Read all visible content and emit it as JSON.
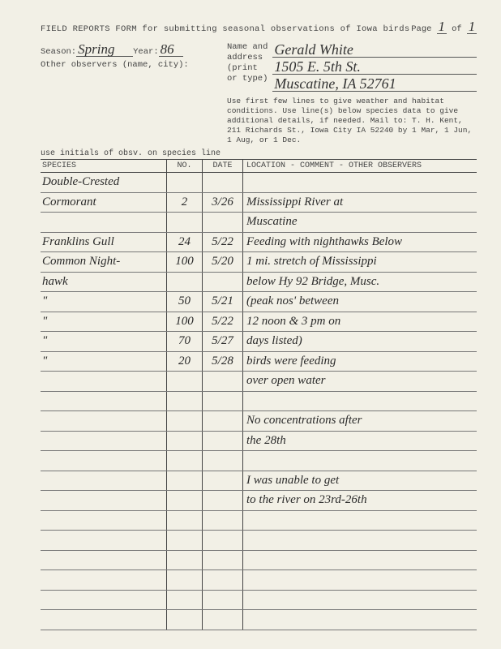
{
  "header": "FIELD REPORTS FORM for submitting seasonal observations of Iowa birds",
  "page_label": "Page",
  "page_of": "of",
  "page_cur": "1",
  "page_total": "1",
  "season_label": "Season:",
  "season": "Spring",
  "year_label": "Year:",
  "year": "86",
  "other_obs_label": "Other observers (name, city):",
  "name_label1": "Name and",
  "name_label2": "address",
  "name_label3": "(print",
  "name_label4": "or type)",
  "name": "Gerald White",
  "addr1": "1505 E. 5th St.",
  "addr2": "Muscatine, IA 52761",
  "instructions": "Use first few lines to give weather and habitat conditions. Use line(s) below species data to give additional details, if needed. Mail to: T. H. Kent, 211 Richards St., Iowa City IA 52240 by 1 Mar, 1 Jun, 1 Aug, or 1 Dec.",
  "initials_label": "use initials of obsv. on species line",
  "col_species": "SPECIES",
  "col_no": "NO.",
  "col_date": "DATE",
  "col_loc": "LOCATION - COMMENT - OTHER OBSERVERS",
  "rows": [
    {
      "sp": "Double-Crested",
      "no": "",
      "dt": "",
      "lc": ""
    },
    {
      "sp": " Cormorant",
      "no": "2",
      "dt": "3/26",
      "lc": "Mississippi River at"
    },
    {
      "sp": "",
      "no": "",
      "dt": "",
      "lc": " Muscatine"
    },
    {
      "sp": "Franklins Gull",
      "no": "24",
      "dt": "5/22",
      "lc": "Feeding with nighthawks Below"
    },
    {
      "sp": "Common Night-",
      "no": "100",
      "dt": "5/20",
      "lc": "1 mi. stretch of Mississippi"
    },
    {
      "sp": " hawk",
      "no": "",
      "dt": "",
      "lc": "below Hy 92 Bridge, Musc."
    },
    {
      "sp": "   \"",
      "no": "50",
      "dt": "5/21",
      "lc": "(peak nos' between"
    },
    {
      "sp": "   \"",
      "no": "100",
      "dt": "5/22",
      "lc": " 12 noon & 3 pm on"
    },
    {
      "sp": "   \"",
      "no": "70",
      "dt": "5/27",
      "lc": " days listed)"
    },
    {
      "sp": "   \"",
      "no": "20",
      "dt": "5/28",
      "lc": " birds were feeding"
    },
    {
      "sp": "",
      "no": "",
      "dt": "",
      "lc": " over open water"
    },
    {
      "sp": "",
      "no": "",
      "dt": "",
      "lc": ""
    },
    {
      "sp": "",
      "no": "",
      "dt": "",
      "lc": "No concentrations after"
    },
    {
      "sp": "",
      "no": "",
      "dt": "",
      "lc": " the 28th"
    },
    {
      "sp": "",
      "no": "",
      "dt": "",
      "lc": ""
    },
    {
      "sp": "",
      "no": "",
      "dt": "",
      "lc": "I was unable to get"
    },
    {
      "sp": "",
      "no": "",
      "dt": "",
      "lc": "to the river on 23rd-26th"
    },
    {
      "sp": "",
      "no": "",
      "dt": "",
      "lc": ""
    },
    {
      "sp": "",
      "no": "",
      "dt": "",
      "lc": ""
    },
    {
      "sp": "",
      "no": "",
      "dt": "",
      "lc": ""
    },
    {
      "sp": "",
      "no": "",
      "dt": "",
      "lc": ""
    },
    {
      "sp": "",
      "no": "",
      "dt": "",
      "lc": ""
    },
    {
      "sp": "",
      "no": "",
      "dt": "",
      "lc": ""
    }
  ]
}
